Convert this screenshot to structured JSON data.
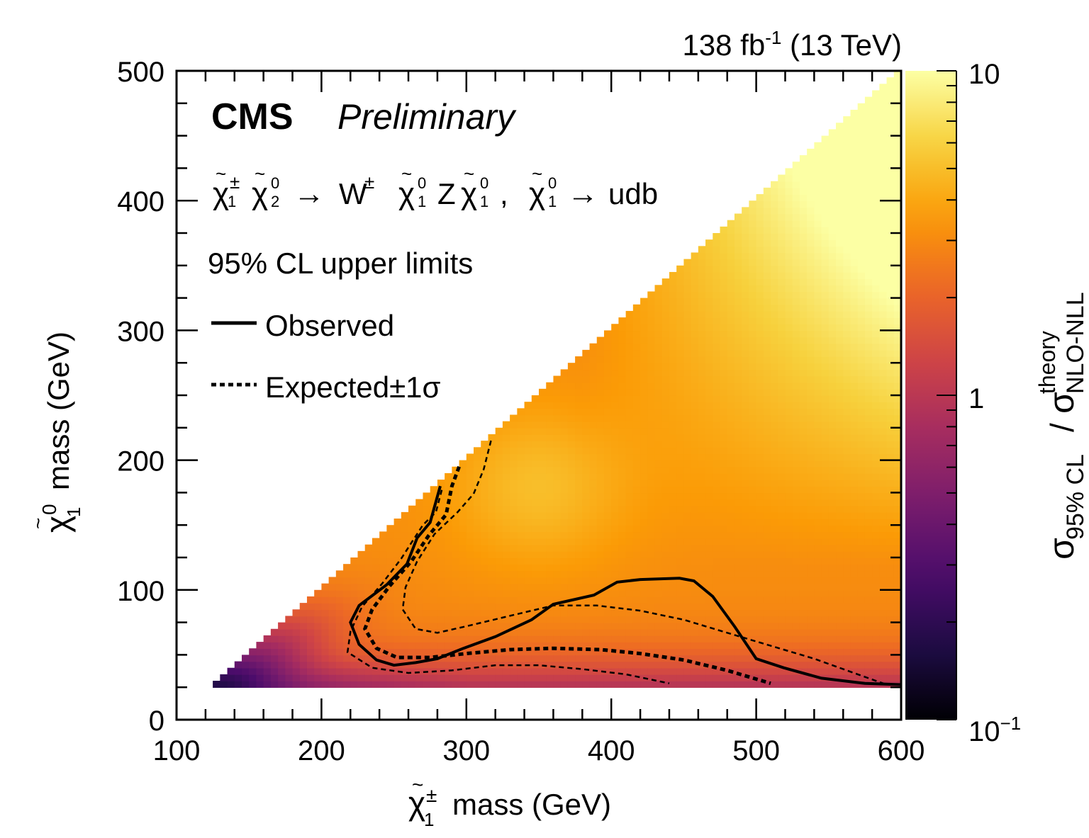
{
  "chart_data": {
    "type": "heatmap",
    "header": {
      "luminosity": "138 fb",
      "luminosity_exp": "-1",
      "energy": "(13 TeV)"
    },
    "experiment": "CMS",
    "status": "Preliminary",
    "process": {
      "chargino": "χ",
      "neutralino2": "χ",
      "arrow1": "→",
      "wboson": "W",
      "lsp": "χ",
      "zboson": "Z",
      "comma": ",",
      "decay_products": "udb",
      "sup_pm": "±",
      "sup_0": "0",
      "sub_1": "1",
      "sub_2": "2",
      "tilde": "~"
    },
    "limit_type": "95% CL upper limits",
    "legend": [
      {
        "label": "Observed",
        "style": "solid"
      },
      {
        "label": "Expected±1σ",
        "style": "dashed"
      }
    ],
    "xaxis": {
      "label_symbol": "χ",
      "label_sup": "±",
      "label_sub": "1",
      "label_text": "mass (GeV)",
      "range": [
        100,
        600
      ],
      "ticks": [
        100,
        200,
        300,
        400,
        500,
        600
      ]
    },
    "yaxis": {
      "label_symbol": "χ",
      "label_sup": "0",
      "label_sub": "1",
      "label_text": "mass (GeV)",
      "range": [
        0,
        500
      ],
      "ticks": [
        0,
        100,
        200,
        300,
        400,
        500
      ]
    },
    "colorbar": {
      "scale": "log",
      "range": [
        0.1,
        10
      ],
      "tick_labels": [
        "10",
        "1",
        "10"
      ],
      "bottom_exp": "−1",
      "colors": [
        "#000004",
        "#1e0c45",
        "#4b0c6b",
        "#781c6d",
        "#a52c60",
        "#cf4446",
        "#ed6925",
        "#fb9b06",
        "#f7d13d",
        "#fcffa4"
      ],
      "title_main": "σ",
      "title_sub": "95% CL",
      "title_slash": "/",
      "title_denom": "σ",
      "title_denom_sub": "NLO-NLL",
      "title_denom_sup": "theory"
    },
    "heatmap_note": "ratio of 95% CL upper limit to theory cross section vs chargino and neutralino masses",
    "observed_contour": [
      [
        282,
        180
      ],
      [
        275,
        152
      ],
      [
        266,
        140
      ],
      [
        259,
        120
      ],
      [
        245,
        104
      ],
      [
        226,
        88
      ],
      [
        220,
        75
      ],
      [
        226,
        58
      ],
      [
        238,
        46
      ],
      [
        250,
        42
      ],
      [
        265,
        44
      ],
      [
        280,
        47
      ],
      [
        298,
        55
      ],
      [
        320,
        64
      ],
      [
        345,
        77
      ],
      [
        360,
        89
      ],
      [
        388,
        96
      ],
      [
        404,
        106
      ],
      [
        420,
        108
      ],
      [
        447,
        109
      ],
      [
        457,
        107
      ],
      [
        470,
        95
      ],
      [
        485,
        72
      ],
      [
        500,
        47
      ],
      [
        519,
        40
      ],
      [
        545,
        32
      ],
      [
        575,
        28
      ],
      [
        600,
        27
      ]
    ],
    "expected_contour": [
      [
        295,
        195
      ],
      [
        290,
        180
      ],
      [
        286,
        158
      ],
      [
        274,
        142
      ],
      [
        262,
        122
      ],
      [
        247,
        103
      ],
      [
        235,
        85
      ],
      [
        230,
        70
      ],
      [
        238,
        55
      ],
      [
        252,
        48
      ],
      [
        275,
        48
      ],
      [
        300,
        51
      ],
      [
        330,
        54
      ],
      [
        360,
        55
      ],
      [
        393,
        54
      ],
      [
        420,
        51
      ],
      [
        450,
        46
      ],
      [
        480,
        38
      ],
      [
        510,
        28
      ]
    ],
    "expected_up_contour": [
      [
        317,
        215
      ],
      [
        312,
        193
      ],
      [
        305,
        174
      ],
      [
        294,
        160
      ],
      [
        278,
        143
      ],
      [
        266,
        122
      ],
      [
        258,
        102
      ],
      [
        256,
        85
      ],
      [
        265,
        70
      ],
      [
        280,
        67
      ],
      [
        300,
        72
      ],
      [
        330,
        80
      ],
      [
        360,
        88
      ],
      [
        390,
        88
      ],
      [
        420,
        84
      ],
      [
        450,
        77
      ],
      [
        480,
        67
      ],
      [
        510,
        57
      ],
      [
        540,
        47
      ],
      [
        570,
        35
      ],
      [
        590,
        27
      ]
    ],
    "expected_down_contour": [
      [
        283,
        177
      ],
      [
        279,
        160
      ],
      [
        270,
        150
      ],
      [
        263,
        138
      ],
      [
        255,
        124
      ],
      [
        242,
        105
      ],
      [
        228,
        87
      ],
      [
        220,
        68
      ],
      [
        218,
        52
      ],
      [
        235,
        40
      ],
      [
        260,
        36
      ],
      [
        290,
        38
      ],
      [
        320,
        42
      ],
      [
        350,
        42
      ],
      [
        380,
        39
      ],
      [
        410,
        35
      ],
      [
        440,
        28
      ]
    ]
  }
}
